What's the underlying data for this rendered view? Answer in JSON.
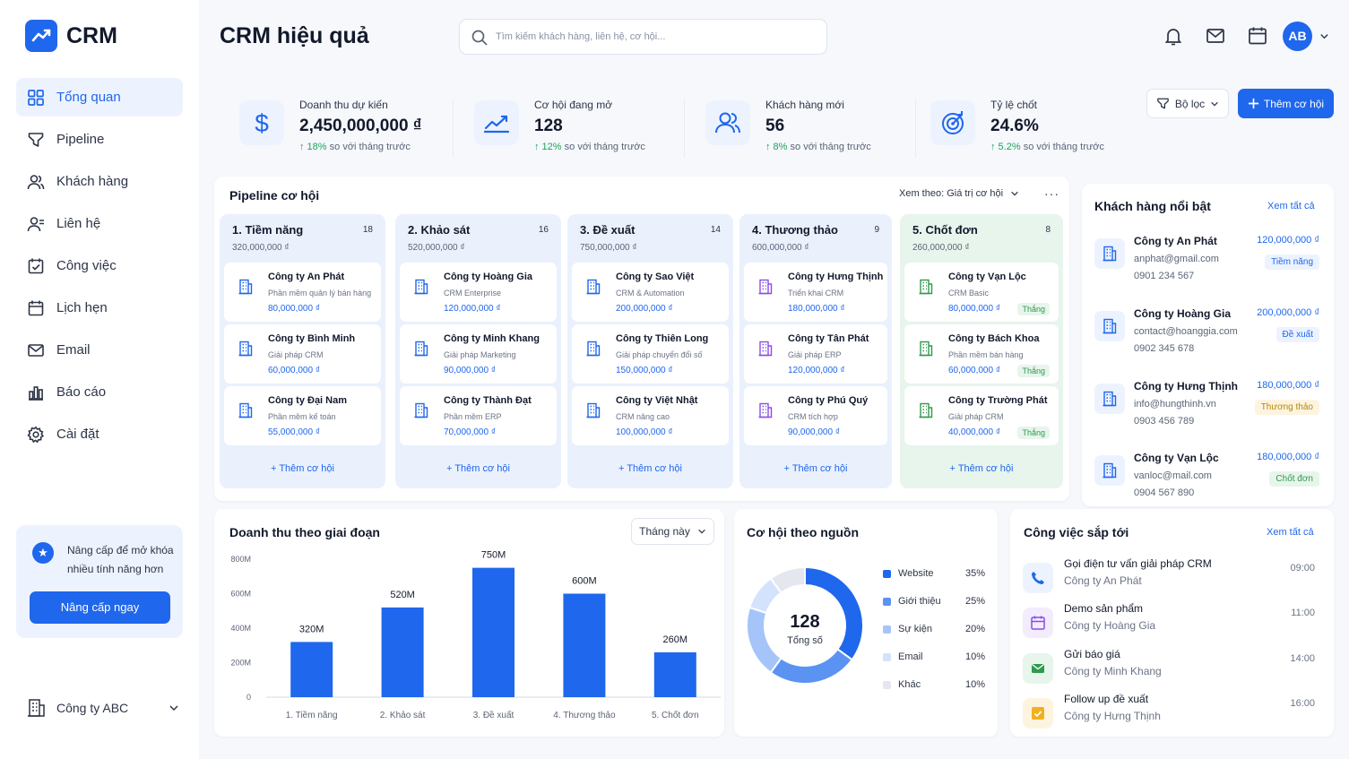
{
  "brand": {
    "name": "CRM",
    "accent": "#1f67ec"
  },
  "sidebar": {
    "items": [
      {
        "label": "Tổng quan",
        "icon": "grid-icon"
      },
      {
        "label": "Pipeline",
        "icon": "funnel-icon"
      },
      {
        "label": "Khách hàng",
        "icon": "users-icon"
      },
      {
        "label": "Liên hệ",
        "icon": "contact-icon"
      },
      {
        "label": "Công việc",
        "icon": "task-check-icon"
      },
      {
        "label": "Lịch hẹn",
        "icon": "calendar-icon"
      },
      {
        "label": "Email",
        "icon": "mail-icon"
      },
      {
        "label": "Báo cáo",
        "icon": "report-icon"
      },
      {
        "label": "Cài đặt",
        "icon": "gear-icon"
      }
    ],
    "upgrade": {
      "text": "Nâng cấp để mở khóa nhiều tính năng hơn",
      "button": "Nâng cấp ngay"
    },
    "company": "Công ty ABC"
  },
  "header": {
    "title": "CRM hiệu quả",
    "search_placeholder": "Tìm kiếm khách hàng, liên hệ, cơ hội...",
    "avatar": "AB"
  },
  "stats": [
    {
      "label": "Doanh thu dự kiến",
      "value": "2,450,000,000 ₫",
      "change": "↑ 18%",
      "note": "so với tháng trước",
      "icon": "dollar-icon"
    },
    {
      "label": "Cơ hội đang mở",
      "value": "128",
      "change": "↑ 12%",
      "note": "so với tháng trước",
      "icon": "trend-icon"
    },
    {
      "label": "Khách hàng mới",
      "value": "56",
      "change": "↑ 8%",
      "note": "so với tháng trước",
      "icon": "users-icon"
    },
    {
      "label": "Tỷ lệ chốt",
      "value": "24.6%",
      "change": "↑ 5.2%",
      "note": "so với tháng trước",
      "icon": "target-icon"
    }
  ],
  "actions": {
    "filter": "Bộ lọc",
    "add": "Thêm cơ hội"
  },
  "pipeline": {
    "title": "Pipeline cơ hội",
    "view_by": "Xem theo: Giá trị cơ hội",
    "add_label": "+ Thêm cơ hội",
    "won_label": "Thắng",
    "columns": [
      {
        "title": "1. Tiềm năng",
        "count": "18",
        "value": "320,000,000 ₫",
        "deals": [
          {
            "name": "Công ty An Phát",
            "desc": "Phần mềm quản lý bán hàng",
            "value": "80,000,000 ₫"
          },
          {
            "name": "Công ty Bình Minh",
            "desc": "Giải pháp CRM",
            "value": "60,000,000 ₫"
          },
          {
            "name": "Công ty Đại Nam",
            "desc": "Phần mềm kế toán",
            "value": "55,000,000 ₫"
          }
        ]
      },
      {
        "title": "2. Khảo sát",
        "count": "16",
        "value": "520,000,000 ₫",
        "deals": [
          {
            "name": "Công ty Hoàng Gia",
            "desc": "CRM Enterprise",
            "value": "120,000,000 ₫"
          },
          {
            "name": "Công ty Minh Khang",
            "desc": "Giải pháp Marketing",
            "value": "90,000,000 ₫"
          },
          {
            "name": "Công ty Thành Đạt",
            "desc": "Phần mềm ERP",
            "value": "70,000,000 ₫"
          }
        ]
      },
      {
        "title": "3. Đề xuất",
        "count": "14",
        "value": "750,000,000 ₫",
        "deals": [
          {
            "name": "Công ty Sao Việt",
            "desc": "CRM & Automation",
            "value": "200,000,000 ₫"
          },
          {
            "name": "Công ty Thiên Long",
            "desc": "Giải pháp chuyển đổi số",
            "value": "150,000,000 ₫"
          },
          {
            "name": "Công ty Việt Nhật",
            "desc": "CRM nâng cao",
            "value": "100,000,000 ₫"
          }
        ]
      },
      {
        "title": "4. Thương thảo",
        "count": "9",
        "value": "600,000,000 ₫",
        "deals": [
          {
            "name": "Công ty Hưng Thịnh",
            "desc": "Triển khai CRM",
            "value": "180,000,000 ₫"
          },
          {
            "name": "Công ty Tân Phát",
            "desc": "Giải pháp ERP",
            "value": "120,000,000 ₫"
          },
          {
            "name": "Công ty Phú Quý",
            "desc": "CRM tích hợp",
            "value": "90,000,000 ₫"
          }
        ]
      },
      {
        "title": "5. Chốt đơn",
        "count": "8",
        "value": "260,000,000 ₫",
        "deals": [
          {
            "name": "Công ty Vạn Lộc",
            "desc": "CRM Basic",
            "value": "80,000,000 ₫"
          },
          {
            "name": "Công ty Bách Khoa",
            "desc": "Phần mềm bán hàng",
            "value": "60,000,000 ₫"
          },
          {
            "name": "Công ty Trường Phát",
            "desc": "Giải pháp CRM",
            "value": "40,000,000 ₫"
          }
        ]
      }
    ]
  },
  "featured": {
    "title": "Khách hàng nổi bật",
    "view_all": "Xem tất cả",
    "customers": [
      {
        "name": "Công ty An Phát",
        "email": "anphat@gmail.com",
        "phone": "0901 234 567",
        "value": "120,000,000 ₫",
        "tag": "Tiềm năng",
        "tag_color": "#1f67ec",
        "tag_bg": "#edf3fe"
      },
      {
        "name": "Công ty Hoàng Gia",
        "email": "contact@hoanggia.com",
        "phone": "0902 345 678",
        "value": "200,000,000 ₫",
        "tag": "Đề xuất",
        "tag_color": "#1f67ec",
        "tag_bg": "#edf3fe"
      },
      {
        "name": "Công ty Hưng Thịnh",
        "email": "info@hungthinh.vn",
        "phone": "0903 456 789",
        "value": "180,000,000 ₫",
        "tag": "Thương thảo",
        "tag_color": "#b8860b",
        "tag_bg": "#fdf4e0"
      },
      {
        "name": "Công ty Vạn Lộc",
        "email": "vanloc@mail.com",
        "phone": "0904 567 890",
        "value": "180,000,000 ₫",
        "tag": "Chốt đơn",
        "tag_color": "#2f9a4c",
        "tag_bg": "#e7f5ec"
      }
    ]
  },
  "revenue": {
    "title": "Doanh thu theo giai đoạn",
    "period": "Tháng này"
  },
  "source": {
    "title": "Cơ hội theo nguồn",
    "total": "128",
    "total_label": "Tổng số"
  },
  "tasks": {
    "title": "Công việc sắp tới",
    "view_all": "Xem tất cả",
    "items": [
      {
        "title": "Gọi điện tư vấn giải pháp CRM",
        "sub": "Công ty An Phát",
        "time": "09:00",
        "icon": "phone-icon",
        "bg": "#edf3fe",
        "color": "#1f67ec"
      },
      {
        "title": "Demo sản phẩm",
        "sub": "Công ty Hoàng Gia",
        "time": "11:00",
        "icon": "calendar-icon",
        "bg": "#f2ecfd",
        "color": "#8a4de8"
      },
      {
        "title": "Gửi báo giá",
        "sub": "Công ty Minh Khang",
        "time": "14:00",
        "icon": "mail-icon",
        "bg": "#e7f5ec",
        "color": "#2f9a4c"
      },
      {
        "title": "Follow up đề xuất",
        "sub": "Công ty Hưng Thịnh",
        "time": "16:00",
        "icon": "task-check-icon",
        "bg": "#fdf4e0",
        "color": "#f2b01e"
      }
    ]
  },
  "chart_data": [
    {
      "type": "bar",
      "title": "Doanh thu theo giai đoạn",
      "categories": [
        "1. Tiềm năng",
        "2. Khảo sát",
        "3. Đề xuất",
        "4. Thương thảo",
        "5. Chốt đơn"
      ],
      "values": [
        320,
        520,
        750,
        600,
        260
      ],
      "data_labels": [
        "320M",
        "520M",
        "750M",
        "600M",
        "260M"
      ],
      "yticks": [
        "0",
        "200M",
        "400M",
        "600M",
        "800M"
      ],
      "ylim": [
        0,
        800
      ],
      "color": "#1f67ec"
    },
    {
      "type": "pie",
      "title": "Cơ hội theo nguồn",
      "labels": [
        "Website",
        "Giới thiệu",
        "Sự kiện",
        "Email",
        "Khác"
      ],
      "values": [
        35,
        25,
        20,
        10,
        10
      ],
      "value_labels": [
        "35%",
        "25%",
        "20%",
        "10%",
        "10%"
      ],
      "colors": [
        "#1f67ec",
        "#5b93f3",
        "#a5c4f9",
        "#d4e3fc",
        "#e4e7ee"
      ]
    }
  ]
}
